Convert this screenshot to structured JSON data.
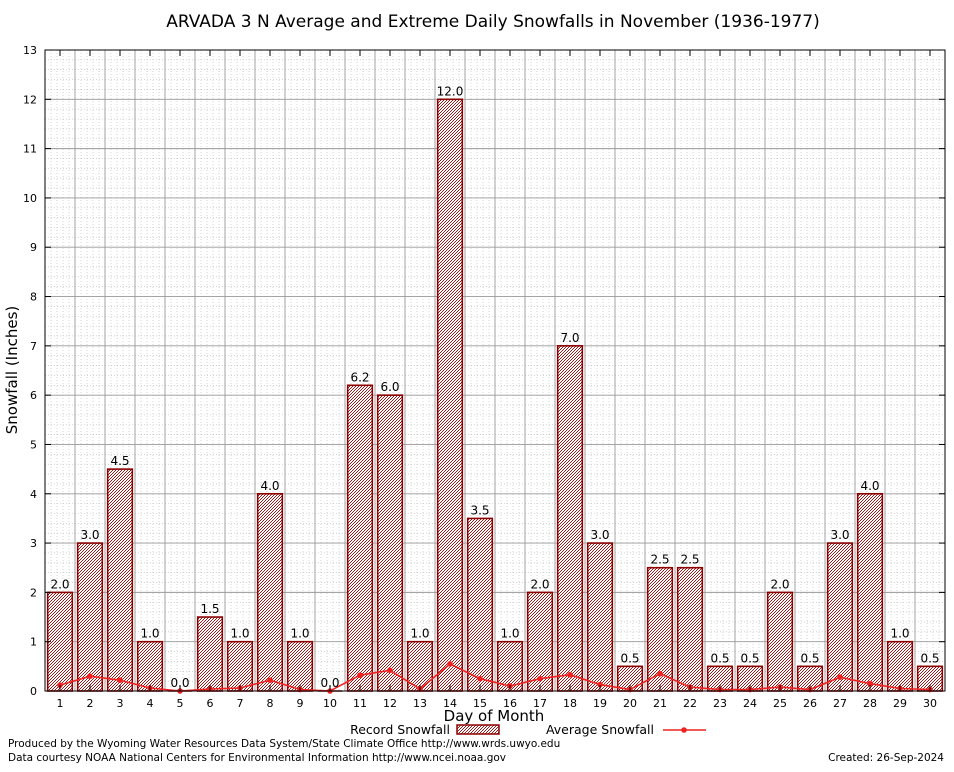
{
  "chart_data": {
    "type": "bar",
    "title": "ARVADA 3 N Average and Extreme Daily Snowfalls in November (1936-1977)",
    "xlabel": "Day of Month",
    "ylabel": "Snowfall (Inches)",
    "ylim": [
      0,
      13
    ],
    "yticks": [
      "0",
      "1",
      "2",
      "3",
      "4",
      "5",
      "6",
      "7",
      "8",
      "9",
      "10",
      "11",
      "12",
      "13"
    ],
    "categories": [
      "1",
      "2",
      "3",
      "4",
      "5",
      "6",
      "7",
      "8",
      "9",
      "10",
      "11",
      "12",
      "13",
      "14",
      "15",
      "16",
      "17",
      "18",
      "19",
      "20",
      "21",
      "22",
      "23",
      "24",
      "25",
      "26",
      "27",
      "28",
      "29",
      "30"
    ],
    "series": [
      {
        "name": "Record Snowfall",
        "kind": "bar",
        "values": [
          2.0,
          3.0,
          4.5,
          1.0,
          0.0,
          1.5,
          1.0,
          4.0,
          1.0,
          0.0,
          6.2,
          6.0,
          1.0,
          12.0,
          3.5,
          1.0,
          2.0,
          7.0,
          3.0,
          0.5,
          2.5,
          2.5,
          0.5,
          0.5,
          2.0,
          0.5,
          3.0,
          4.0,
          1.0,
          0.5
        ],
        "labels": [
          "2.0",
          "3.0",
          "4.5",
          "1.0",
          "0.0",
          "1.5",
          "1.0",
          "4.0",
          "1.0",
          "0.0",
          "6.2",
          "6.0",
          "1.0",
          "12.0",
          "3.5",
          "1.0",
          "2.0",
          "7.0",
          "3.0",
          "0.5",
          "2.5",
          "2.5",
          "0.5",
          "0.5",
          "2.0",
          "0.5",
          "3.0",
          "4.0",
          "1.0",
          "0.5"
        ]
      },
      {
        "name": "Average Snowfall",
        "kind": "line",
        "values": [
          0.12,
          0.3,
          0.22,
          0.06,
          0.0,
          0.04,
          0.06,
          0.22,
          0.03,
          0.0,
          0.32,
          0.42,
          0.04,
          0.55,
          0.25,
          0.1,
          0.25,
          0.33,
          0.13,
          0.03,
          0.35,
          0.08,
          0.03,
          0.03,
          0.08,
          0.03,
          0.28,
          0.15,
          0.05,
          0.03
        ]
      }
    ],
    "legend": [
      "Record Snowfall",
      "Average Snowfall"
    ],
    "legend_position": "bottom",
    "grid": true,
    "colors": {
      "bar_stroke": "#8b0000",
      "bar_fill": "#b23a3a",
      "line": "#ee2222",
      "grid": "#999999"
    }
  },
  "footer": {
    "produced_by": "Produced by the Wyoming Water Resources Data System/State Climate Office http://www.wrds.uwyo.edu",
    "data_courtesy": "Data courtesy NOAA National Centers for Environmental Information http://www.ncei.noaa.gov",
    "created": "Created:  26-Sep-2024"
  }
}
